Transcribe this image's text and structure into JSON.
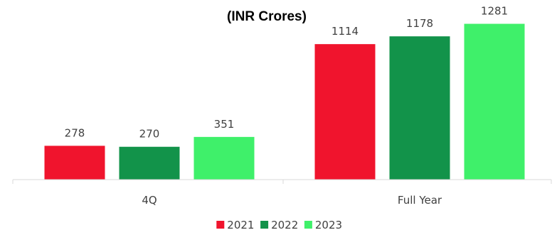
{
  "chart_data": {
    "type": "bar",
    "title": "(INR Crores)",
    "xlabel": "",
    "ylabel": "",
    "categories": [
      "4Q",
      "Full Year"
    ],
    "series": [
      {
        "name": "2021",
        "values": [
          278,
          1114
        ],
        "color": "#F0142D"
      },
      {
        "name": "2022",
        "values": [
          270,
          1178
        ],
        "color": "#12934A"
      },
      {
        "name": "2023",
        "values": [
          351,
          1281
        ],
        "color": "#3FF06A"
      }
    ],
    "ylim": [
      0,
      1360
    ],
    "grid": false,
    "legend": "bottom-center"
  }
}
